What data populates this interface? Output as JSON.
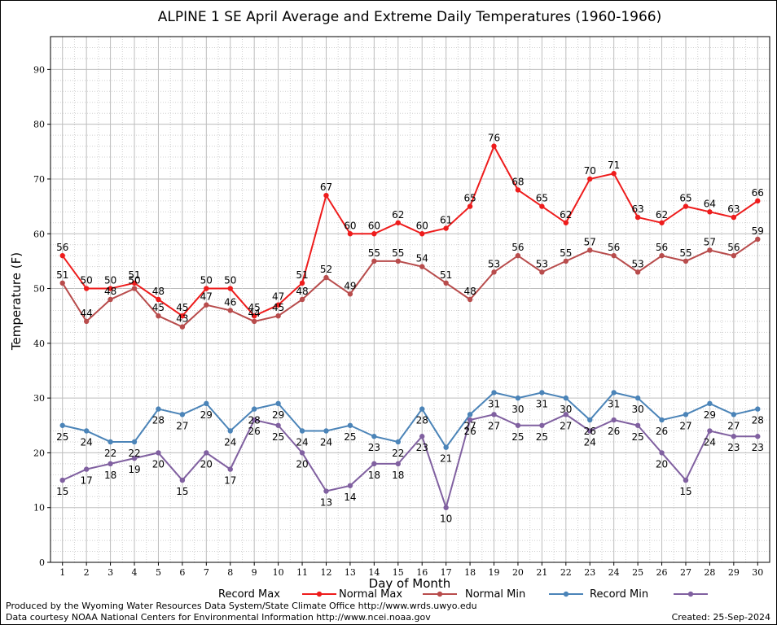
{
  "credits": {
    "produced_by": "Produced by the Wyoming Water Resources Data System/State Climate Office http://www.wrds.uwyo.edu",
    "data_courtesy": "Data courtesy NOAA National Centers for Environmental Information http://www.ncei.noaa.gov",
    "created": "Created:  25-Sep-2024"
  },
  "chart_data": {
    "type": "line",
    "title": "ALPINE 1 SE April Average and Extreme Daily Temperatures (1960-1966)",
    "xlabel": "Day of Month",
    "ylabel": "Temperature (F)",
    "x": [
      1,
      2,
      3,
      4,
      5,
      6,
      7,
      8,
      9,
      10,
      11,
      12,
      13,
      14,
      15,
      16,
      17,
      18,
      19,
      20,
      21,
      22,
      23,
      24,
      25,
      26,
      27,
      28,
      29,
      30
    ],
    "xlim": [
      0.5,
      30.5
    ],
    "ylim": [
      0,
      96
    ],
    "yticks": [
      0,
      10,
      20,
      30,
      40,
      50,
      60,
      70,
      80,
      90
    ],
    "grid": true,
    "legend_position": "bottom",
    "series": [
      {
        "name": "Record Max",
        "color": "#ee1c1c",
        "values": [
          56,
          50,
          50,
          51,
          48,
          45,
          50,
          50,
          45,
          47,
          51,
          67,
          60,
          60,
          62,
          60,
          61,
          65,
          76,
          68,
          65,
          62,
          70,
          71,
          63,
          62,
          65,
          64,
          63,
          66
        ]
      },
      {
        "name": "Normal Max",
        "color": "#b84c4c",
        "values": [
          51,
          44,
          48,
          50,
          45,
          43,
          47,
          46,
          44,
          45,
          48,
          52,
          49,
          55,
          55,
          54,
          51,
          48,
          53,
          56,
          53,
          55,
          57,
          56,
          53,
          56,
          55,
          57,
          56,
          59
        ]
      },
      {
        "name": "Normal Min",
        "color": "#4b84b8",
        "values": [
          25,
          24,
          22,
          22,
          28,
          27,
          29,
          24,
          28,
          29,
          24,
          24,
          25,
          23,
          22,
          28,
          21,
          27,
          31,
          30,
          31,
          30,
          26,
          31,
          30,
          26,
          27,
          29,
          27,
          28
        ]
      },
      {
        "name": "Record Min",
        "color": "#8060a0",
        "values": [
          15,
          17,
          18,
          19,
          20,
          15,
          20,
          17,
          26,
          25,
          20,
          13,
          14,
          18,
          18,
          23,
          10,
          26,
          27,
          25,
          25,
          27,
          24,
          26,
          25,
          20,
          15,
          24,
          23,
          23
        ]
      }
    ]
  }
}
